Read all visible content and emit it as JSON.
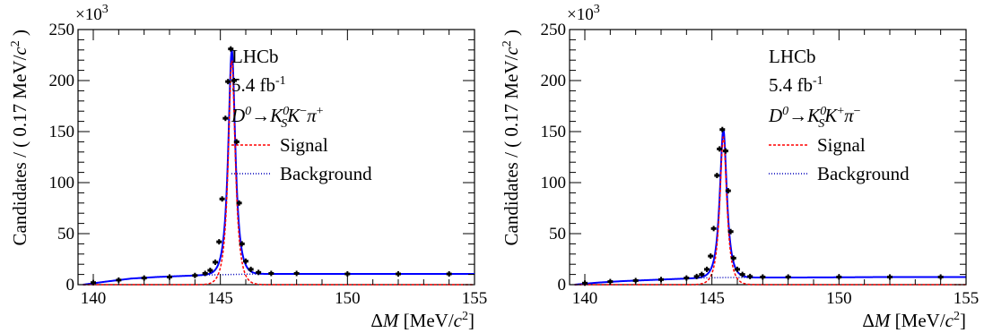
{
  "colors": {
    "total": "#0000ff",
    "signal": "#ff0000",
    "background": "#0000bb",
    "data": "#000000"
  },
  "chart_data": [
    {
      "type": "line",
      "xlabel": "ΔM [MeV/c²]",
      "xlabel_parts": [
        "Δ",
        "M",
        " [MeV/",
        "c",
        "2",
        "]"
      ],
      "ylabel": "Candidates / ( 0.17 MeV/c² )",
      "ylabel_parts": [
        "Candidates / ( 0.17 MeV/",
        "c",
        "2",
        " )"
      ],
      "y_multiplier": "×10³",
      "y_multiplier_parts": [
        "×10",
        "3"
      ],
      "xlim": [
        139.4,
        155
      ],
      "ylim": [
        0,
        250
      ],
      "x_ticks": [
        "140",
        "145",
        "150",
        "155"
      ],
      "y_ticks": [
        "0",
        "50",
        "100",
        "150",
        "200",
        "250"
      ],
      "legend": {
        "experiment": "LHCb",
        "lumi": "5.4 fb",
        "lumi_sup": "-1",
        "decay": "D⁰→K⁰S K⁻π⁺",
        "decay_parts": [
          "D",
          "0",
          "→",
          "K",
          "0",
          "S",
          "K",
          "−",
          "π",
          "+"
        ],
        "entries": [
          "Signal",
          "Background"
        ]
      },
      "peak": {
        "mean": 145.45,
        "height": 220,
        "width": 0.17
      },
      "series": [
        {
          "name": "Signal",
          "style": "dashed"
        },
        {
          "name": "Background",
          "style": "dotted",
          "x": [
            139.6,
            140.5,
            141.5,
            142.5,
            143.5,
            144.5,
            145.5,
            146.5,
            148,
            150,
            152,
            155
          ],
          "values": [
            0,
            3,
            6,
            7.5,
            8.5,
            9.5,
            10,
            10.5,
            10.5,
            10.5,
            10.5,
            10.5
          ]
        }
      ],
      "points": [
        {
          "x": 140.0,
          "y": 2
        },
        {
          "x": 141.0,
          "y": 4.5
        },
        {
          "x": 142.0,
          "y": 6.5
        },
        {
          "x": 143.0,
          "y": 7.5
        },
        {
          "x": 144.0,
          "y": 9
        },
        {
          "x": 144.4,
          "y": 11
        },
        {
          "x": 144.6,
          "y": 14
        },
        {
          "x": 144.8,
          "y": 22
        },
        {
          "x": 144.95,
          "y": 42
        },
        {
          "x": 145.07,
          "y": 84
        },
        {
          "x": 145.2,
          "y": 163
        },
        {
          "x": 145.3,
          "y": 199
        },
        {
          "x": 145.41,
          "y": 231
        },
        {
          "x": 145.54,
          "y": 200
        },
        {
          "x": 145.64,
          "y": 140
        },
        {
          "x": 145.74,
          "y": 80
        },
        {
          "x": 145.85,
          "y": 40
        },
        {
          "x": 146.0,
          "y": 23
        },
        {
          "x": 146.2,
          "y": 15
        },
        {
          "x": 146.5,
          "y": 12
        },
        {
          "x": 147.0,
          "y": 11
        },
        {
          "x": 148.0,
          "y": 11
        },
        {
          "x": 150.0,
          "y": 10.5
        },
        {
          "x": 152.0,
          "y": 10.5
        },
        {
          "x": 154.0,
          "y": 10.5
        }
      ]
    },
    {
      "type": "line",
      "xlabel": "ΔM [MeV/c²]",
      "xlabel_parts": [
        "Δ",
        "M",
        " [MeV/",
        "c",
        "2",
        "]"
      ],
      "ylabel": "Candidates / ( 0.17 MeV/c² )",
      "ylabel_parts": [
        "Candidates / ( 0.17 MeV/",
        "c",
        "2",
        " )"
      ],
      "y_multiplier": "×10³",
      "y_multiplier_parts": [
        "×10",
        "3"
      ],
      "xlim": [
        139.4,
        155
      ],
      "ylim": [
        0,
        250
      ],
      "x_ticks": [
        "140",
        "145",
        "150",
        "155"
      ],
      "y_ticks": [
        "0",
        "50",
        "100",
        "150",
        "200",
        "250"
      ],
      "legend": {
        "experiment": "LHCb",
        "lumi": "5.4 fb",
        "lumi_sup": "-1",
        "decay": "D⁰→K⁰S K⁺π⁻",
        "decay_parts": [
          "D",
          "0",
          "→",
          "K",
          "0",
          "S",
          "K",
          "+",
          "π",
          "−"
        ],
        "entries": [
          "Signal",
          "Background"
        ]
      },
      "peak": {
        "mean": 145.45,
        "height": 145,
        "width": 0.17
      },
      "series": [
        {
          "name": "Signal",
          "style": "dashed"
        },
        {
          "name": "Background",
          "style": "dotted",
          "x": [
            139.6,
            140.5,
            141.5,
            142.5,
            143.5,
            144.5,
            145.5,
            146.5,
            148,
            150,
            152,
            155
          ],
          "values": [
            0,
            2,
            3.5,
            4.5,
            5.5,
            6.5,
            7,
            7,
            7,
            7.2,
            7.5,
            7.5
          ]
        }
      ],
      "points": [
        {
          "x": 140.0,
          "y": 1.5
        },
        {
          "x": 141.0,
          "y": 3
        },
        {
          "x": 142.0,
          "y": 4
        },
        {
          "x": 143.0,
          "y": 5
        },
        {
          "x": 144.0,
          "y": 6.5
        },
        {
          "x": 144.4,
          "y": 8
        },
        {
          "x": 144.6,
          "y": 10
        },
        {
          "x": 144.8,
          "y": 15
        },
        {
          "x": 144.95,
          "y": 28
        },
        {
          "x": 145.07,
          "y": 55
        },
        {
          "x": 145.2,
          "y": 107
        },
        {
          "x": 145.3,
          "y": 133
        },
        {
          "x": 145.41,
          "y": 152
        },
        {
          "x": 145.54,
          "y": 131
        },
        {
          "x": 145.64,
          "y": 92
        },
        {
          "x": 145.74,
          "y": 52
        },
        {
          "x": 145.85,
          "y": 26
        },
        {
          "x": 146.0,
          "y": 15
        },
        {
          "x": 146.2,
          "y": 10
        },
        {
          "x": 146.5,
          "y": 8
        },
        {
          "x": 147.0,
          "y": 7.5
        },
        {
          "x": 148.0,
          "y": 7.5
        },
        {
          "x": 150.0,
          "y": 7.5
        },
        {
          "x": 152.0,
          "y": 7.5
        },
        {
          "x": 154.0,
          "y": 7.5
        }
      ]
    }
  ]
}
